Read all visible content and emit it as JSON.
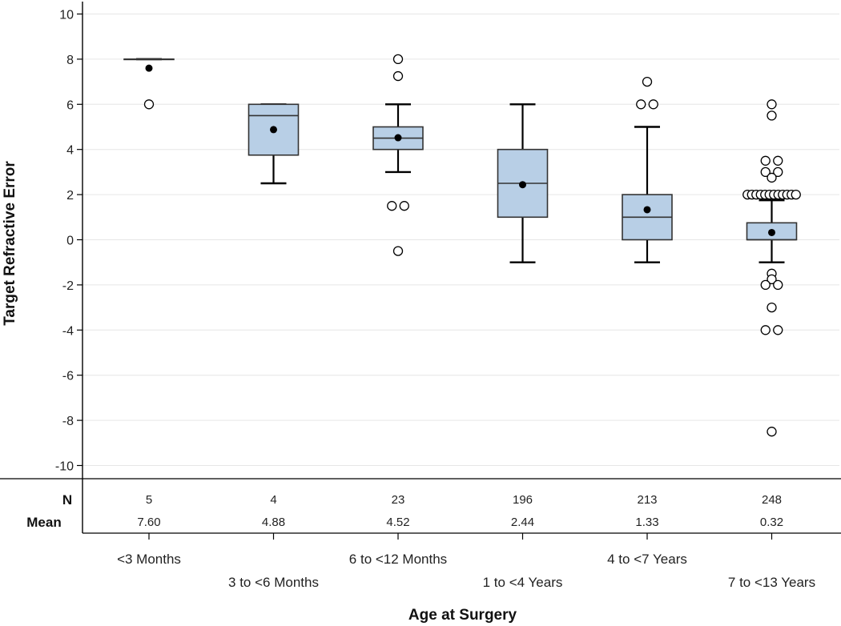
{
  "chart_data": {
    "type": "boxplot",
    "xlabel": "Age at Surgery",
    "ylabel": "Target Refractive Error",
    "ylim": [
      -10.6,
      10.4
    ],
    "yticks": [
      10,
      8,
      6,
      4,
      2,
      0,
      -2,
      -4,
      -6,
      -8,
      -10
    ],
    "ytick_labels": [
      "10",
      "8",
      "6",
      "4",
      "2",
      "0",
      "-2",
      "-4",
      "-6",
      "-8",
      "-10"
    ],
    "stat_labels": {
      "n": "N",
      "mean": "Mean"
    },
    "categories": [
      "<3 Months",
      "3 to <6 Months",
      "6 to <12 Months",
      "1 to <4 Years",
      "4 to <7 Years",
      "7 to <13 Years"
    ],
    "n_labels": [
      "5",
      "4",
      "23",
      "196",
      "213",
      "248"
    ],
    "mean_labels": [
      "7.60",
      "4.88",
      "4.52",
      "2.44",
      "1.33",
      "0.32"
    ],
    "boxes": [
      {
        "q1": 8.0,
        "median": 8.0,
        "q3": 8.0,
        "whisker_low": 8.0,
        "whisker_high": 8.0,
        "mean": 7.6,
        "outliers": [
          6
        ]
      },
      {
        "q1": 3.75,
        "median": 5.5,
        "q3": 6.0,
        "whisker_low": 2.5,
        "whisker_high": 6.0,
        "mean": 4.88,
        "outliers": []
      },
      {
        "q1": 4.0,
        "median": 4.5,
        "q3": 5.0,
        "whisker_low": 3.0,
        "whisker_high": 6.0,
        "mean": 4.52,
        "outliers": [
          8,
          7.25,
          1.5,
          1.5,
          -0.5
        ]
      },
      {
        "q1": 1.0,
        "median": 2.5,
        "q3": 4.0,
        "whisker_low": -1.0,
        "whisker_high": 6.0,
        "mean": 2.44,
        "outliers": []
      },
      {
        "q1": 0.0,
        "median": 1.0,
        "q3": 2.0,
        "whisker_low": -1.0,
        "whisker_high": 5.0,
        "mean": 1.33,
        "outliers": [
          7,
          6,
          6
        ]
      },
      {
        "q1": 0.0,
        "median": 0.0,
        "q3": 0.75,
        "whisker_low": -1.0,
        "whisker_high": 1.75,
        "mean": 0.32,
        "outliers": [
          6,
          5.5,
          3.5,
          3.5,
          3.0,
          3.0,
          2.75,
          2.0,
          2.0,
          2.0,
          2.0,
          2.0,
          2.0,
          2.0,
          2.0,
          2.0,
          2.0,
          2.0,
          2.0,
          -1.5,
          -1.75,
          -2.0,
          -2.0,
          -3.0,
          -4.0,
          -4.0,
          -8.5
        ]
      }
    ],
    "colors": {
      "box_fill": "#b8cfe6",
      "box_stroke": "#333333",
      "grid": "#e6e6e6",
      "axis": "#000000"
    }
  }
}
